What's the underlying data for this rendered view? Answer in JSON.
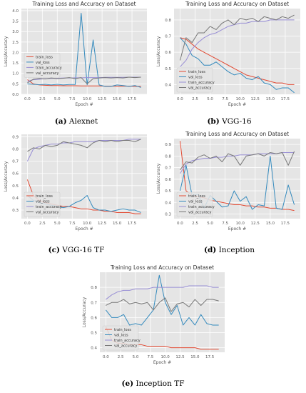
{
  "figure": {
    "panels": [
      {
        "caption_letter": "(a)",
        "caption_text": "Alexnet"
      },
      {
        "caption_letter": "(b)",
        "caption_text": "VGG-16"
      },
      {
        "caption_letter": "(c)",
        "caption_text": "VGG-16 TF"
      },
      {
        "caption_letter": "(d)",
        "caption_text": "Inception"
      },
      {
        "caption_letter": "(e)",
        "caption_text": "Inception TF"
      }
    ]
  },
  "colors": {
    "train_loss": "#e24a33",
    "val_loss": "#348abd",
    "train_accuracy": "#988ed5",
    "val_accuracy": "#777777",
    "plot_bg": "#e5e5e5",
    "grid": "#ffffff"
  },
  "chart_data": [
    {
      "type": "line",
      "title": "Training Loss and Accuracy on Dataset",
      "xlabel": "Epoch #",
      "ylabel": "Loss/Accuracy",
      "xlim": [
        -1,
        20
      ],
      "ylim": [
        0.0,
        4.1
      ],
      "xticks": [
        "0.0",
        "2.5",
        "5.0",
        "7.5",
        "10.0",
        "12.5",
        "15.0",
        "17.5"
      ],
      "xtick_values": [
        0,
        2.5,
        5,
        7.5,
        10,
        12.5,
        15,
        17.5
      ],
      "yticks": [
        "0.0",
        "0.5",
        "1.0",
        "1.5",
        "2.0",
        "2.5",
        "3.0",
        "3.5",
        "4.0"
      ],
      "ytick_values": [
        0,
        0.5,
        1,
        1.5,
        2,
        2.5,
        3,
        3.5,
        4
      ],
      "grid": true,
      "legend_position": "center-left",
      "x": [
        0,
        1,
        2,
        3,
        4,
        5,
        6,
        7,
        8,
        9,
        10,
        11,
        12,
        13,
        14,
        15,
        16,
        17,
        18,
        19
      ],
      "series": [
        {
          "name": "train_loss",
          "values": [
            0.7,
            0.5,
            0.45,
            0.43,
            0.42,
            0.42,
            0.41,
            0.41,
            0.41,
            0.4,
            0.4,
            0.4,
            0.4,
            0.39,
            0.39,
            0.39,
            0.39,
            0.39,
            0.38,
            0.38
          ]
        },
        {
          "name": "val_loss",
          "values": [
            0.5,
            0.48,
            0.46,
            0.48,
            0.45,
            0.48,
            0.45,
            0.47,
            0.47,
            3.88,
            0.45,
            2.6,
            0.45,
            0.38,
            0.38,
            0.45,
            0.42,
            0.38,
            0.42,
            0.33
          ]
        },
        {
          "name": "train_accuracy",
          "values": [
            0.62,
            0.7,
            0.72,
            0.75,
            0.76,
            0.77,
            0.78,
            0.78,
            0.79,
            0.79,
            0.8,
            0.8,
            0.8,
            0.81,
            0.81,
            0.81,
            0.81,
            0.82,
            0.82,
            0.82
          ]
        },
        {
          "name": "val_accuracy",
          "values": [
            0.55,
            0.72,
            0.76,
            0.74,
            0.78,
            0.75,
            0.77,
            0.8,
            0.75,
            0.8,
            0.5,
            0.75,
            0.78,
            0.8,
            0.78,
            0.8,
            0.78,
            0.82,
            0.8,
            0.82
          ]
        }
      ]
    },
    {
      "type": "line",
      "title": "Training Loss and Accuracy on Dataset",
      "xlabel": "Epoch #",
      "ylabel": "Loss/Accuracy",
      "xlim": [
        -1,
        20
      ],
      "ylim": [
        0.34,
        0.87
      ],
      "xticks": [
        "0.0",
        "2.5",
        "5.0",
        "7.5",
        "10.0",
        "12.5",
        "15.0",
        "17.5"
      ],
      "xtick_values": [
        0,
        2.5,
        5,
        7.5,
        10,
        12.5,
        15,
        17.5
      ],
      "yticks": [
        "0.4",
        "0.5",
        "0.6",
        "0.7",
        "0.8"
      ],
      "ytick_values": [
        0.4,
        0.5,
        0.6,
        0.7,
        0.8
      ],
      "grid": true,
      "legend_position": "lower-left",
      "x": [
        0,
        1,
        2,
        3,
        4,
        5,
        6,
        7,
        8,
        9,
        10,
        11,
        12,
        13,
        14,
        15,
        16,
        17,
        18,
        19
      ],
      "series": [
        {
          "name": "train_loss",
          "values": [
            0.69,
            0.68,
            0.65,
            0.62,
            0.6,
            0.58,
            0.56,
            0.54,
            0.52,
            0.5,
            0.48,
            0.46,
            0.45,
            0.44,
            0.43,
            0.42,
            0.41,
            0.41,
            0.4,
            0.4
          ]
        },
        {
          "name": "val_loss",
          "values": [
            0.69,
            0.65,
            0.58,
            0.56,
            0.52,
            0.52,
            0.54,
            0.51,
            0.48,
            0.46,
            0.47,
            0.44,
            0.43,
            0.45,
            0.41,
            0.4,
            0.37,
            0.38,
            0.38,
            0.35
          ]
        },
        {
          "name": "train_accuracy",
          "values": [
            0.51,
            0.55,
            0.62,
            0.66,
            0.69,
            0.71,
            0.72,
            0.74,
            0.76,
            0.77,
            0.78,
            0.78,
            0.79,
            0.79,
            0.79,
            0.8,
            0.8,
            0.8,
            0.8,
            0.8
          ]
        },
        {
          "name": "val_accuracy",
          "values": [
            0.55,
            0.69,
            0.66,
            0.72,
            0.72,
            0.76,
            0.74,
            0.78,
            0.8,
            0.77,
            0.81,
            0.8,
            0.81,
            0.79,
            0.82,
            0.81,
            0.8,
            0.82,
            0.81,
            0.83
          ]
        }
      ]
    },
    {
      "type": "line",
      "title": "",
      "xlabel": "Epoch #",
      "ylabel": "Loss/Accuracy",
      "xlim": [
        -1,
        20
      ],
      "ylim": [
        0.23,
        0.92
      ],
      "xticks": [
        "0.0",
        "2.5",
        "5.0",
        "7.5",
        "10.0",
        "12.5",
        "15.0",
        "17.5"
      ],
      "xtick_values": [
        0,
        2.5,
        5,
        7.5,
        10,
        12.5,
        15,
        17.5
      ],
      "yticks": [
        "0.3",
        "0.4",
        "0.5",
        "0.6",
        "0.7",
        "0.8",
        "0.9"
      ],
      "ytick_values": [
        0.3,
        0.4,
        0.5,
        0.6,
        0.7,
        0.8,
        0.9
      ],
      "grid": true,
      "legend_position": "lower-left",
      "x": [
        0,
        1,
        2,
        3,
        4,
        5,
        6,
        7,
        8,
        9,
        10,
        11,
        12,
        13,
        14,
        15,
        16,
        17,
        18,
        19
      ],
      "series": [
        {
          "name": "train_loss",
          "values": [
            0.55,
            0.42,
            0.38,
            0.36,
            0.35,
            0.34,
            0.33,
            0.33,
            0.32,
            0.31,
            0.31,
            0.3,
            0.3,
            0.29,
            0.29,
            0.28,
            0.28,
            0.28,
            0.27,
            0.27
          ]
        },
        {
          "name": "val_loss",
          "values": [
            0.42,
            0.38,
            0.36,
            0.35,
            0.34,
            0.33,
            0.32,
            0.33,
            0.36,
            0.38,
            0.42,
            0.32,
            0.3,
            0.3,
            0.29,
            0.3,
            0.31,
            0.3,
            0.3,
            0.28
          ]
        },
        {
          "name": "train_accuracy",
          "values": [
            0.7,
            0.8,
            0.82,
            0.83,
            0.84,
            0.84,
            0.85,
            0.85,
            0.86,
            0.86,
            0.86,
            0.86,
            0.87,
            0.87,
            0.87,
            0.87,
            0.87,
            0.88,
            0.88,
            0.88
          ]
        },
        {
          "name": "val_accuracy",
          "values": [
            0.78,
            0.81,
            0.8,
            0.83,
            0.82,
            0.83,
            0.86,
            0.85,
            0.84,
            0.83,
            0.81,
            0.85,
            0.87,
            0.86,
            0.87,
            0.86,
            0.87,
            0.87,
            0.86,
            0.88
          ]
        }
      ]
    },
    {
      "type": "line",
      "title": "Training Loss and Accuracy on Dataset",
      "xlabel": "Epoch #",
      "ylabel": "Loss/Accuracy",
      "xlim": [
        -1,
        20
      ],
      "ylim": [
        0.26,
        0.95
      ],
      "xticks": [
        "0.0",
        "2.5",
        "5.0",
        "7.5",
        "10.0",
        "12.5",
        "15.0",
        "17.5"
      ],
      "xtick_values": [
        0,
        2.5,
        5,
        7.5,
        10,
        12.5,
        15,
        17.5
      ],
      "yticks": [
        "0.3",
        "0.4",
        "0.5",
        "0.6",
        "0.7",
        "0.8",
        "0.9"
      ],
      "ytick_values": [
        0.3,
        0.4,
        0.5,
        0.6,
        0.7,
        0.8,
        0.9
      ],
      "grid": true,
      "legend_position": "lower-left",
      "x": [
        0,
        1,
        2,
        3,
        4,
        5,
        6,
        7,
        8,
        9,
        10,
        11,
        12,
        13,
        14,
        15,
        16,
        17,
        18,
        19
      ],
      "series": [
        {
          "name": "train_loss",
          "values": [
            0.93,
            0.5,
            0.46,
            0.45,
            0.44,
            0.42,
            0.41,
            0.4,
            0.39,
            0.38,
            0.38,
            0.37,
            0.37,
            0.36,
            0.36,
            0.35,
            0.35,
            0.34,
            0.34,
            0.33
          ]
        },
        {
          "name": "val_loss",
          "values": [
            0.5,
            0.72,
            0.46,
            0.47,
            0.35,
            0.46,
            0.41,
            0.36,
            0.37,
            0.5,
            0.41,
            0.45,
            0.34,
            0.38,
            0.37,
            0.8,
            0.35,
            0.34,
            0.55,
            0.38
          ]
        },
        {
          "name": "train_accuracy",
          "values": [
            0.65,
            0.73,
            0.76,
            0.77,
            0.78,
            0.78,
            0.79,
            0.79,
            0.8,
            0.8,
            0.81,
            0.81,
            0.81,
            0.82,
            0.82,
            0.82,
            0.82,
            0.83,
            0.83,
            0.83
          ]
        },
        {
          "name": "val_accuracy",
          "values": [
            0.68,
            0.75,
            0.74,
            0.79,
            0.81,
            0.78,
            0.8,
            0.75,
            0.82,
            0.8,
            0.72,
            0.8,
            0.81,
            0.82,
            0.8,
            0.83,
            0.82,
            0.83,
            0.72,
            0.84
          ]
        }
      ]
    },
    {
      "type": "line",
      "title": "Training Loss and Accuracy on Dataset",
      "xlabel": "Epoch #",
      "ylabel": "Loss/Accuracy",
      "xlim": [
        -1,
        20
      ],
      "ylim": [
        0.37,
        0.9
      ],
      "xticks": [
        "0.0",
        "2.5",
        "5.0",
        "7.5",
        "10.0",
        "12.5",
        "15.0",
        "17.5"
      ],
      "xtick_values": [
        0,
        2.5,
        5,
        7.5,
        10,
        12.5,
        15,
        17.5
      ],
      "yticks": [
        "0.4",
        "0.5",
        "0.6",
        "0.7",
        "0.8"
      ],
      "ytick_values": [
        0.4,
        0.5,
        0.6,
        0.7,
        0.8
      ],
      "grid": true,
      "legend_position": "lower-left",
      "x": [
        0,
        1,
        2,
        3,
        4,
        5,
        6,
        7,
        8,
        9,
        10,
        11,
        12,
        13,
        14,
        15,
        16,
        17,
        18,
        19
      ],
      "series": [
        {
          "name": "train_loss",
          "values": [
            0.54,
            0.45,
            0.43,
            0.43,
            0.42,
            0.42,
            0.42,
            0.41,
            0.41,
            0.41,
            0.41,
            0.4,
            0.4,
            0.4,
            0.4,
            0.4,
            0.39,
            0.39,
            0.39,
            0.39
          ]
        },
        {
          "name": "val_loss",
          "values": [
            0.65,
            0.6,
            0.6,
            0.62,
            0.55,
            0.56,
            0.55,
            0.6,
            0.65,
            0.88,
            0.7,
            0.62,
            0.68,
            0.55,
            0.6,
            0.55,
            0.62,
            0.56,
            0.55,
            0.55
          ]
        },
        {
          "name": "train_accuracy",
          "values": [
            0.72,
            0.75,
            0.77,
            0.78,
            0.78,
            0.79,
            0.79,
            0.79,
            0.8,
            0.8,
            0.8,
            0.8,
            0.8,
            0.8,
            0.81,
            0.81,
            0.81,
            0.81,
            0.8,
            0.8
          ]
        },
        {
          "name": "val_accuracy",
          "values": [
            0.68,
            0.7,
            0.7,
            0.72,
            0.69,
            0.7,
            0.69,
            0.7,
            0.65,
            0.7,
            0.73,
            0.64,
            0.69,
            0.7,
            0.67,
            0.72,
            0.68,
            0.72,
            0.72,
            0.71
          ]
        }
      ]
    }
  ]
}
